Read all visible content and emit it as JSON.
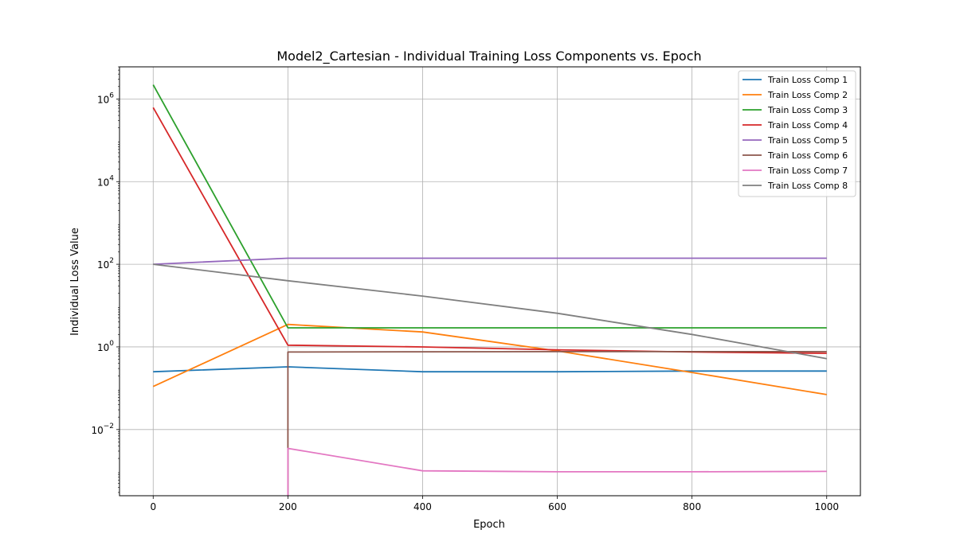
{
  "chart_data": {
    "type": "line",
    "title": "Model2_Cartesian - Individual Training Loss Components vs. Epoch",
    "xlabel": "Epoch",
    "ylabel": "Individual Loss Value",
    "yscale": "log",
    "xlim": [
      -50,
      1050
    ],
    "ylim": [
      0.00025,
      6000000
    ],
    "xticks": [
      0,
      200,
      400,
      600,
      800,
      1000
    ],
    "yticks": [
      {
        "value": 0.01,
        "base": "10",
        "exp": "−2"
      },
      {
        "value": 1,
        "base": "10",
        "exp": "0"
      },
      {
        "value": 100,
        "base": "10",
        "exp": "2"
      },
      {
        "value": 10000,
        "base": "10",
        "exp": "4"
      },
      {
        "value": 1000000,
        "base": "10",
        "exp": "6"
      }
    ],
    "grid": true,
    "legend_position": "upper-right",
    "series": [
      {
        "name": "Train Loss Comp 1",
        "color": "#1f77b4",
        "points": [
          [
            0,
            0.25
          ],
          [
            200,
            0.33
          ],
          [
            400,
            0.25
          ],
          [
            600,
            0.25
          ],
          [
            800,
            0.26
          ],
          [
            1000,
            0.26
          ]
        ]
      },
      {
        "name": "Train Loss Comp 2",
        "color": "#ff7f0e",
        "points": [
          [
            0,
            0.11
          ],
          [
            200,
            3.5
          ],
          [
            400,
            2.3
          ],
          [
            600,
            0.8
          ],
          [
            800,
            0.24
          ],
          [
            1000,
            0.07
          ]
        ]
      },
      {
        "name": "Train Loss Comp 3",
        "color": "#2ca02c",
        "points": [
          [
            0,
            2200000
          ],
          [
            200,
            2.9
          ],
          [
            400,
            2.9
          ],
          [
            600,
            2.9
          ],
          [
            800,
            2.9
          ],
          [
            1000,
            2.9
          ]
        ]
      },
      {
        "name": "Train Loss Comp 4",
        "color": "#d62728",
        "points": [
          [
            0,
            620000
          ],
          [
            200,
            1.1
          ],
          [
            400,
            1.0
          ],
          [
            600,
            0.85
          ],
          [
            800,
            0.75
          ],
          [
            1000,
            0.7
          ]
        ]
      },
      {
        "name": "Train Loss Comp 5",
        "color": "#9467bd",
        "points": [
          [
            0,
            100
          ],
          [
            200,
            140
          ],
          [
            400,
            140
          ],
          [
            600,
            140
          ],
          [
            800,
            140
          ],
          [
            1000,
            140
          ]
        ]
      },
      {
        "name": "Train Loss Comp 6",
        "color": "#8c564b",
        "points": [
          [
            200,
            0.0002
          ],
          [
            200,
            0.75
          ],
          [
            400,
            0.76
          ],
          [
            600,
            0.77
          ],
          [
            800,
            0.77
          ],
          [
            1000,
            0.77
          ]
        ]
      },
      {
        "name": "Train Loss Comp 7",
        "color": "#e377c2",
        "points": [
          [
            200,
            0.0002
          ],
          [
            200,
            0.0035
          ],
          [
            400,
            0.001
          ],
          [
            600,
            0.00095
          ],
          [
            800,
            0.00095
          ],
          [
            1000,
            0.00097
          ]
        ]
      },
      {
        "name": "Train Loss Comp 8",
        "color": "#7f7f7f",
        "points": [
          [
            0,
            100
          ],
          [
            200,
            40
          ],
          [
            400,
            17
          ],
          [
            600,
            6.5
          ],
          [
            800,
            2.0
          ],
          [
            1000,
            0.52
          ]
        ]
      }
    ]
  }
}
